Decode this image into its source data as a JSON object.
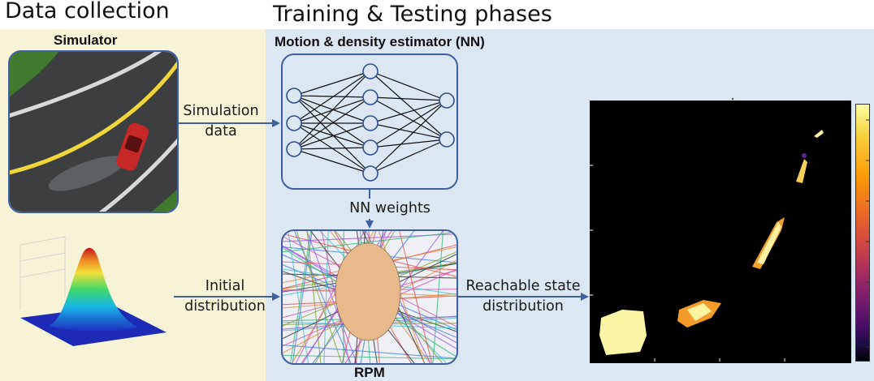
{
  "headings": {
    "data_collection": "Data collection",
    "training_testing": "Training & Testing phases"
  },
  "labels": {
    "simulator": "Simulator",
    "estimator": "Motion & density estimator (NN)",
    "rpm": "RPM",
    "simulation_data": [
      "Simulation",
      "data"
    ],
    "nn_weights": "NN weights",
    "initial_distribution": [
      "Initial",
      "distribution"
    ],
    "reachable_state_distribution": [
      "Reachable state",
      "distribution"
    ]
  },
  "colors": {
    "left_panel": "#f7f3d7",
    "right_panel": "#dce7f4",
    "arrow": "#3f5fa0",
    "node_fill": "#dce7f4"
  },
  "icons": {
    "simulator": "car-on-road-image",
    "initial": "gaussian-surface-plot",
    "rpm": "polytope-lines-image",
    "heatmap": "reachable-density-heatmap"
  }
}
